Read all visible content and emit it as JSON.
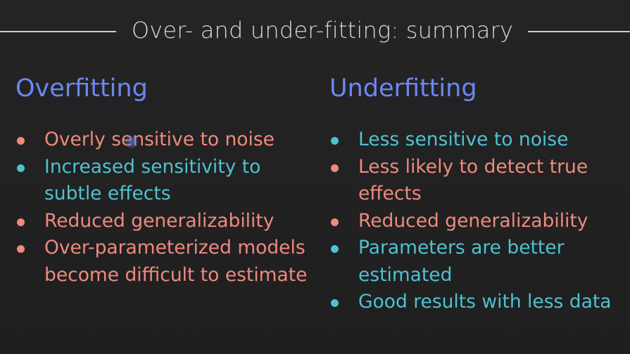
{
  "slide": {
    "title": "Over- and under-fitting: summary",
    "colors": {
      "background": "#222223",
      "heading": "#6e86f0",
      "negative": "#ef8a7c",
      "positive": "#4fc1cf",
      "title": "#d8d8d8"
    },
    "overfitting": {
      "heading": "Overfitting",
      "items": [
        {
          "text": "Overly sensitive to noise",
          "tone": "negative"
        },
        {
          "text": "Increased sensitivity to subtle effects",
          "tone": "positive"
        },
        {
          "text": "Reduced generalizability",
          "tone": "negative"
        },
        {
          "text": "Over-parameterized models become difficult to estimate",
          "tone": "negative"
        }
      ]
    },
    "underfitting": {
      "heading": "Underfitting",
      "items": [
        {
          "text": "Less sensitive to noise",
          "tone": "positive"
        },
        {
          "text": "Less likely to detect true effects",
          "tone": "negative"
        },
        {
          "text": "Reduced generalizability",
          "tone": "negative"
        },
        {
          "text": "Parameters are better estimated",
          "tone": "positive"
        },
        {
          "text": "Good results with less data",
          "tone": "positive"
        }
      ]
    }
  }
}
